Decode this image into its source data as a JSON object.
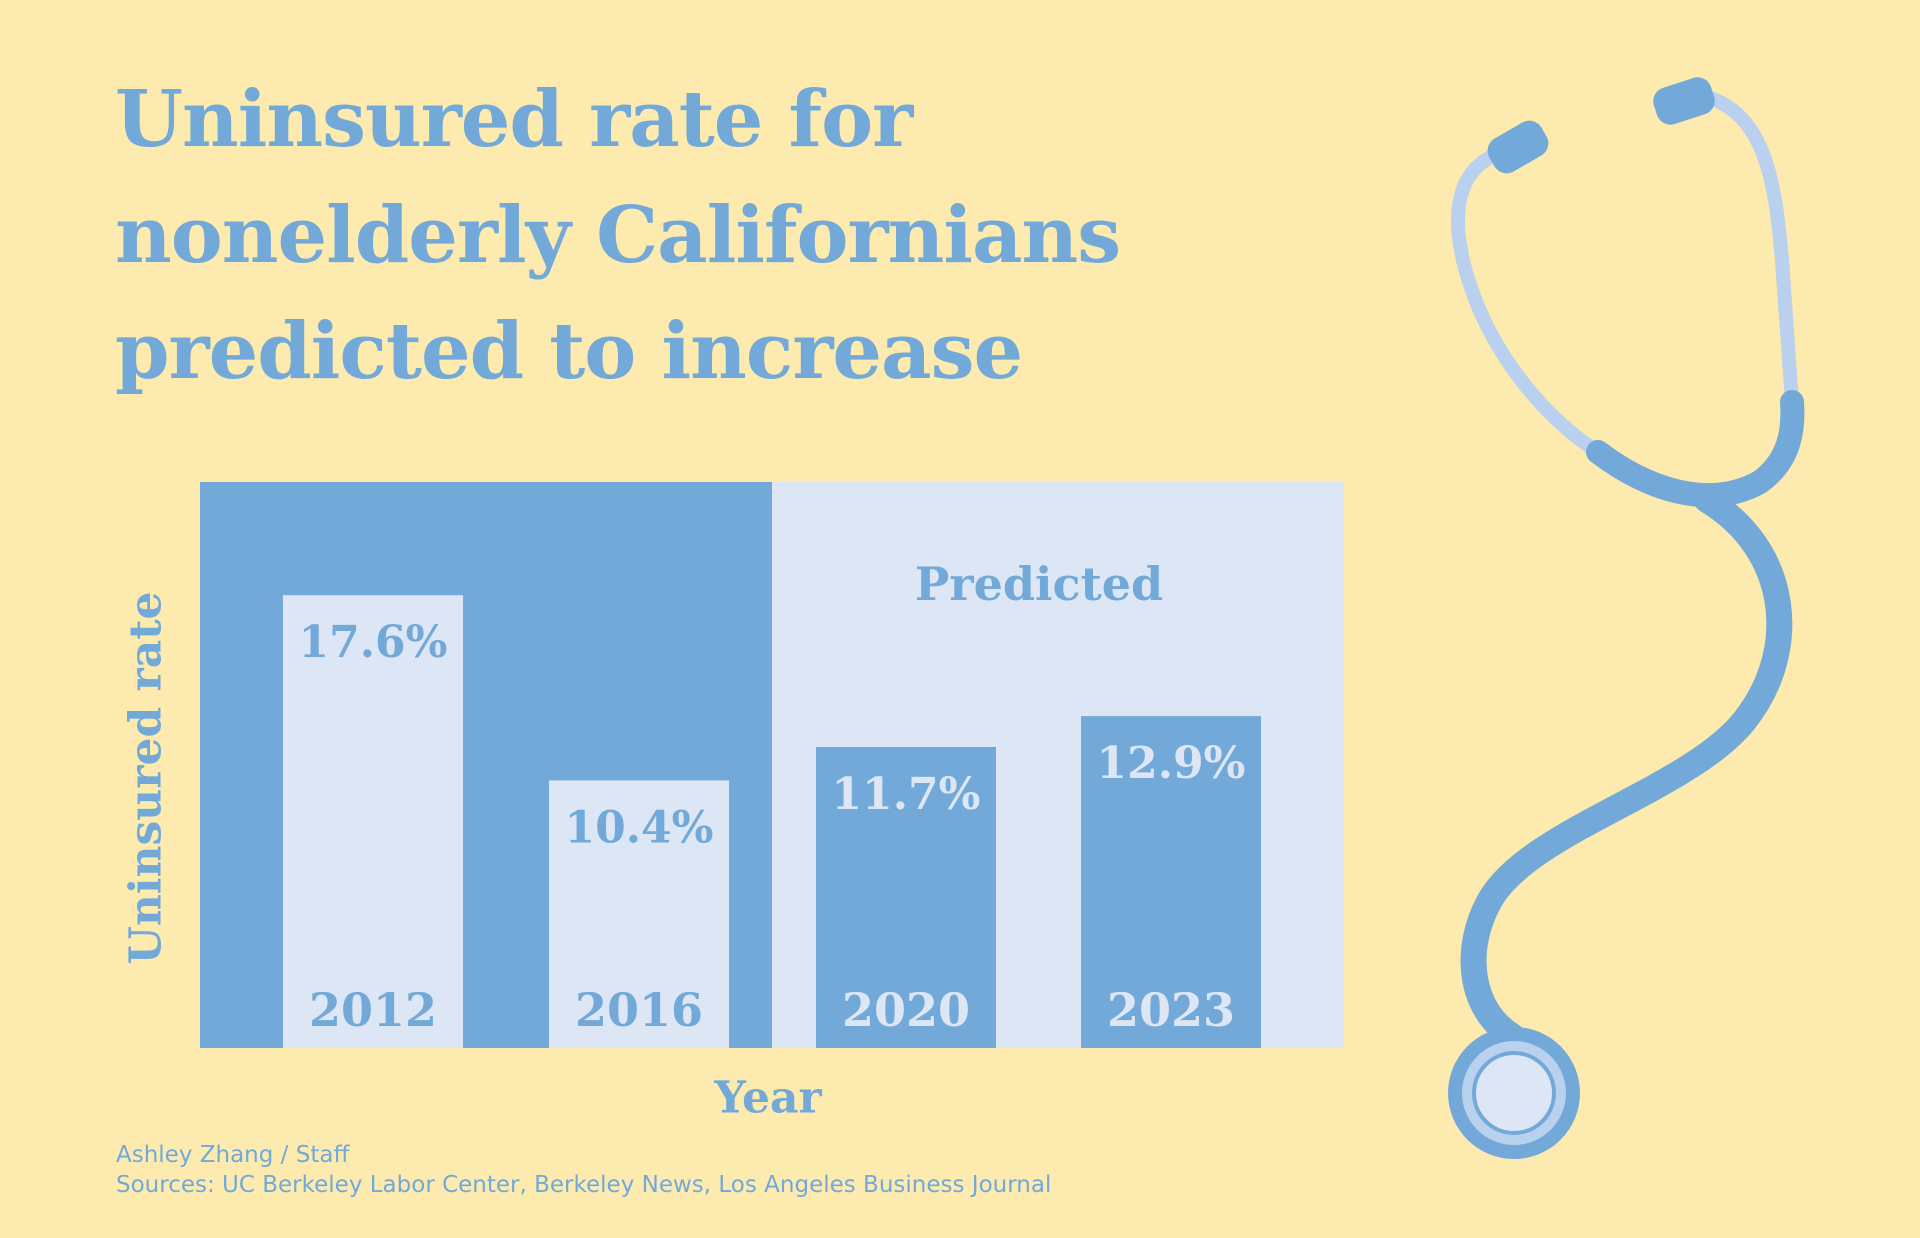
{
  "title_lines": [
    "Uninsured rate for",
    "nonelderly Californians",
    "predicted to increase"
  ],
  "colors": {
    "background": "#fdeaae",
    "dark_blue": "#72a9d8",
    "light_blue": "#dce6f5",
    "tube_light": "#b9d0ee",
    "text_blue": "#72a9d8"
  },
  "chart_data": {
    "type": "bar",
    "title": "Uninsured rate for nonelderly Californians predicted to increase",
    "xlabel": "Year",
    "ylabel": "Uninsured rate",
    "categories": [
      "2012",
      "2016",
      "2020",
      "2023"
    ],
    "values": [
      17.6,
      10.4,
      11.7,
      12.9
    ],
    "value_labels": [
      "17.6%",
      "10.4%",
      "11.7%",
      "12.9%"
    ],
    "predicted": [
      false,
      false,
      true,
      true
    ],
    "predicted_label": "Predicted",
    "ylim": [
      0,
      22
    ],
    "grid": false,
    "legend": "none"
  },
  "credit": {
    "author": "Ashley Zhang / Staff",
    "sources": "Sources: UC Berkeley Labor Center, Berkeley News, Los Angeles Business Journal"
  },
  "illustration": {
    "icon": "stethoscope-icon"
  }
}
